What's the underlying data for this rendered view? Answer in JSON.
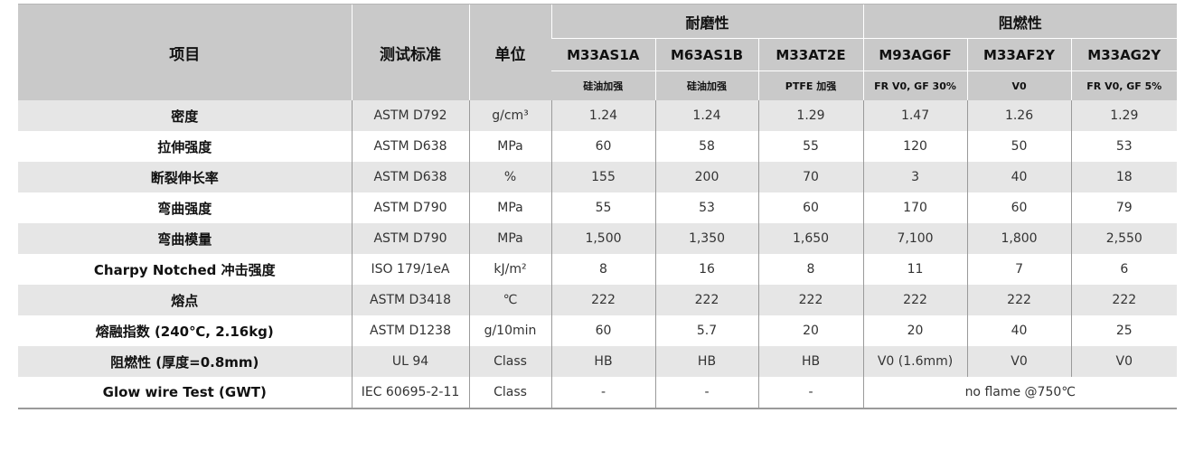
{
  "header": {
    "item": "项目",
    "standard": "测试标准",
    "unit": "单位",
    "group1": "耐磨性",
    "group2": "阻燃性",
    "grades": [
      "M33AS1A",
      "M63AS1B",
      "M33AT2E",
      "M93AG6F",
      "M33AF2Y",
      "M33AG2Y"
    ],
    "descriptions": [
      "硅油加强",
      "硅油加强",
      "PTFE 加强",
      "FR V0, GF 30%",
      "V0",
      "FR V0, GF 5%"
    ]
  },
  "rows": [
    {
      "item": "密度",
      "standard": "ASTM D792",
      "unit": "g/cm³",
      "values": [
        "1.24",
        "1.24",
        "1.29",
        "1.47",
        "1.26",
        "1.29"
      ]
    },
    {
      "item": "拉伸强度",
      "standard": "ASTM D638",
      "unit": "MPa",
      "values": [
        "60",
        "58",
        "55",
        "120",
        "50",
        "53"
      ]
    },
    {
      "item": "断裂伸长率",
      "standard": "ASTM D638",
      "unit": "%",
      "values": [
        "155",
        "200",
        "70",
        "3",
        "40",
        "18"
      ]
    },
    {
      "item": "弯曲强度",
      "standard": "ASTM D790",
      "unit": "MPa",
      "values": [
        "55",
        "53",
        "60",
        "170",
        "60",
        "79"
      ]
    },
    {
      "item": "弯曲模量",
      "standard": "ASTM D790",
      "unit": "MPa",
      "values": [
        "1,500",
        "1,350",
        "1,650",
        "7,100",
        "1,800",
        "2,550"
      ]
    },
    {
      "item": "Charpy Notched 冲击强度",
      "standard": "ISO 179/1eA",
      "unit": "kJ/m²",
      "values": [
        "8",
        "16",
        "8",
        "11",
        "7",
        "6"
      ]
    },
    {
      "item": "熔点",
      "standard": "ASTM D3418",
      "unit": "℃",
      "values": [
        "222",
        "222",
        "222",
        "222",
        "222",
        "222"
      ]
    },
    {
      "item": "熔融指数 (240℃, 2.16kg)",
      "standard": "ASTM D1238",
      "unit": "g/10min",
      "values": [
        "60",
        "5.7",
        "20",
        "20",
        "40",
        "25"
      ]
    },
    {
      "item": "阻燃性 (厚度=0.8mm)",
      "standard": "UL 94",
      "unit": "Class",
      "values": [
        "HB",
        "HB",
        "HB",
        "V0 (1.6mm)",
        "V0",
        "V0"
      ]
    }
  ],
  "gwt": {
    "item": "Glow wire Test (GWT)",
    "standard": "IEC 60695-2-11",
    "unit": "Class",
    "values": [
      "-",
      "-",
      "-"
    ],
    "merged": "no flame @750℃"
  }
}
